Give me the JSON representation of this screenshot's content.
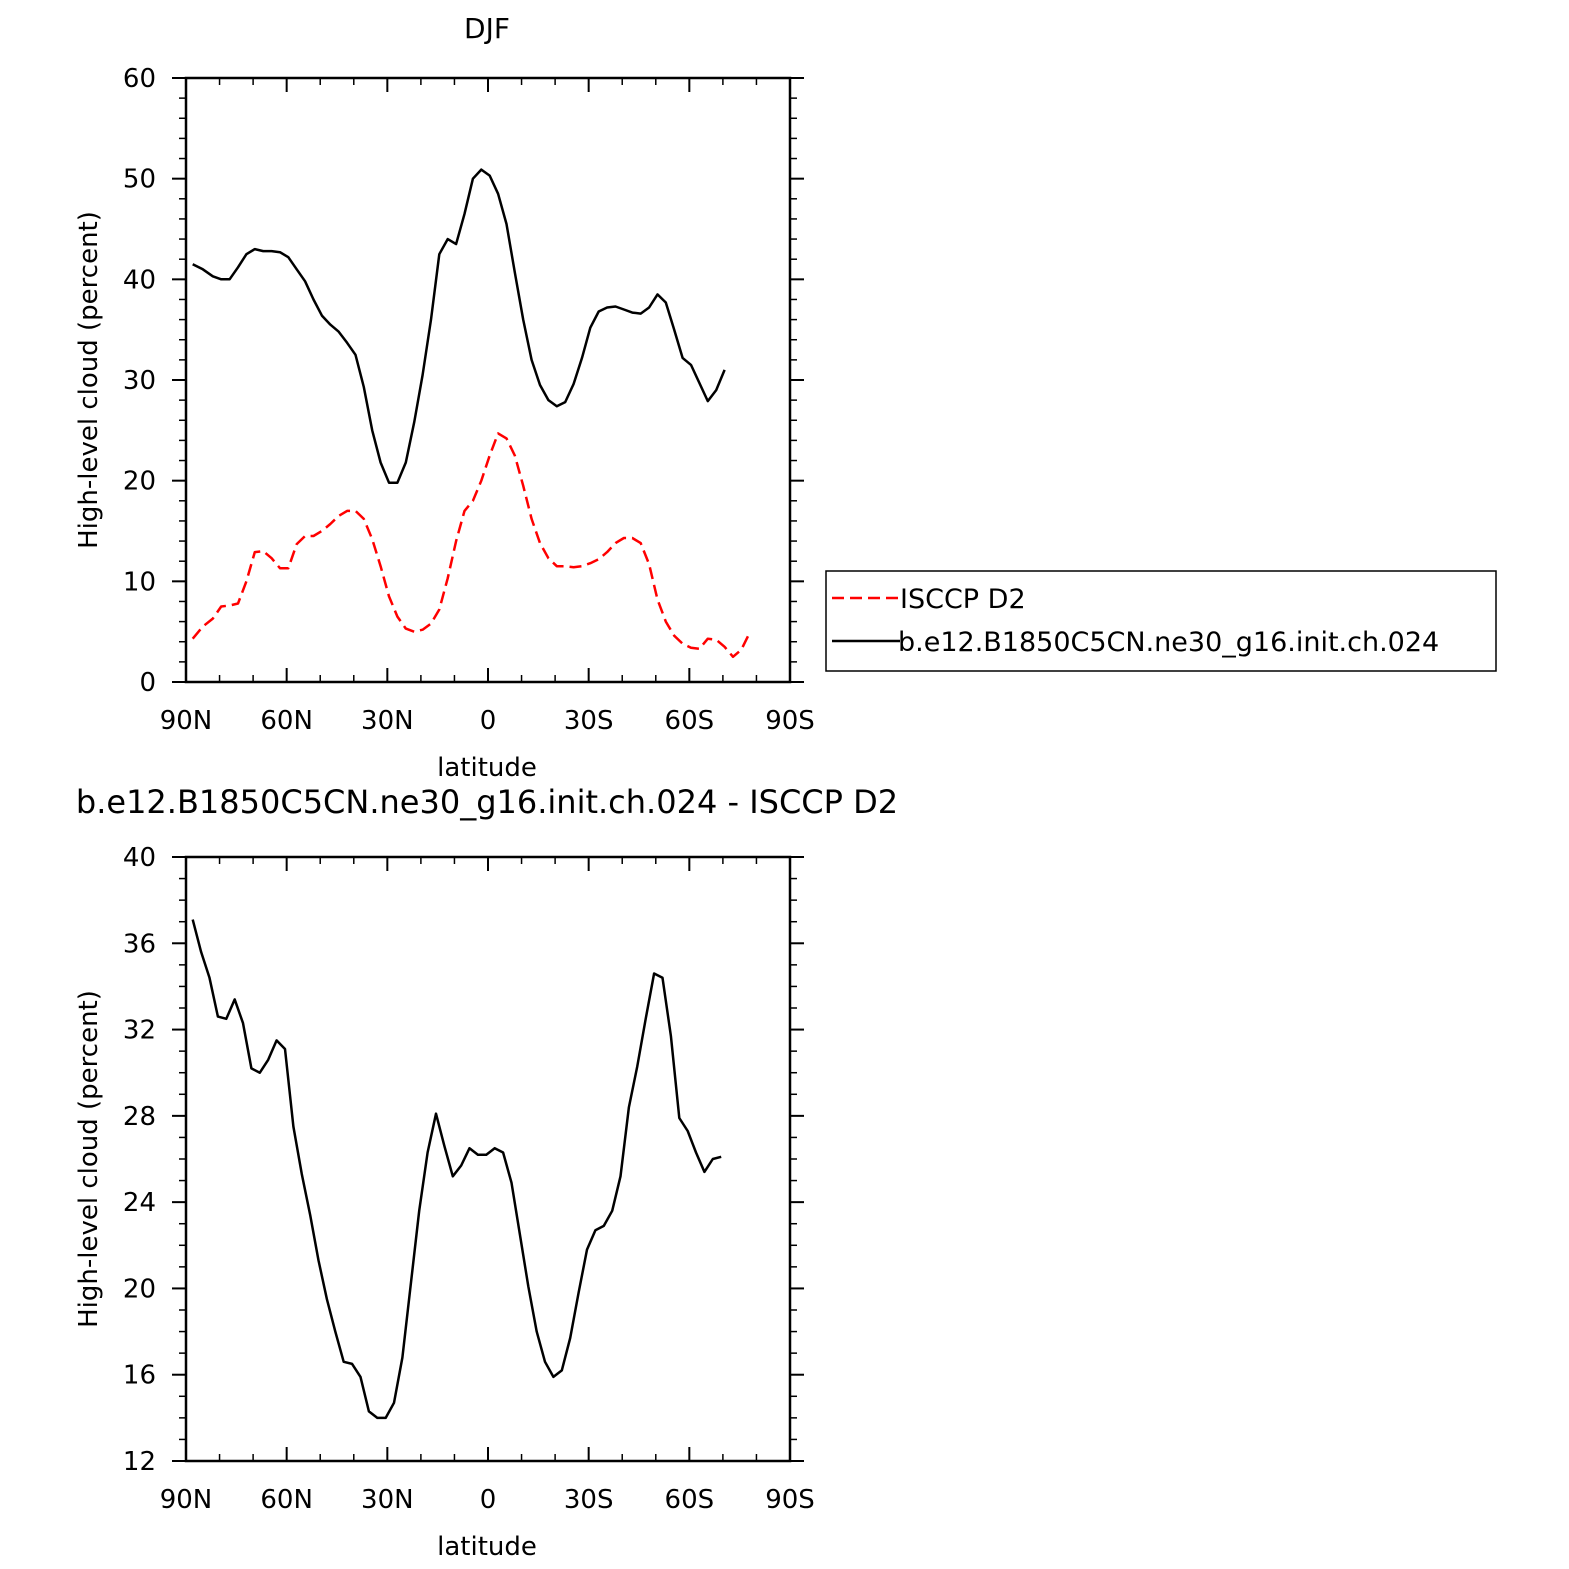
{
  "chart_data": [
    {
      "type": "line",
      "title": "DJF",
      "xlabel": "latitude",
      "ylabel": "High-level cloud (percent)",
      "xlim": [
        -90,
        90
      ],
      "ylim": [
        0,
        60
      ],
      "x_ticks": [
        {
          "value": -90,
          "label": "90N"
        },
        {
          "value": -60,
          "label": "60N"
        },
        {
          "value": -30,
          "label": "30N"
        },
        {
          "value": 0,
          "label": "0"
        },
        {
          "value": 30,
          "label": "30S"
        },
        {
          "value": 60,
          "label": "60S"
        },
        {
          "value": 90,
          "label": "90S"
        }
      ],
      "y_ticks": [
        {
          "value": 0,
          "label": "0"
        },
        {
          "value": 10,
          "label": "10"
        },
        {
          "value": 20,
          "label": "20"
        },
        {
          "value": 30,
          "label": "30"
        },
        {
          "value": 40,
          "label": "40"
        },
        {
          "value": 50,
          "label": "50"
        },
        {
          "value": 60,
          "label": "60"
        }
      ],
      "grid": false,
      "legend": {
        "placement": "right",
        "entries": [
          {
            "name": "ISCCP D2",
            "color": "#ff0000",
            "dash": true
          },
          {
            "name": "b.e12.B1850C5CN.ne30_g16.init.ch.024",
            "color": "#000000",
            "dash": false
          }
        ]
      },
      "series": [
        {
          "name": "ISCCP D2",
          "color": "#ff0000",
          "dash": true,
          "points": [
            [
              -88,
              4.3
            ],
            [
              -85,
              5.5
            ],
            [
              -82,
              6.3
            ],
            [
              -79.5,
              7.5
            ],
            [
              -77,
              7.6
            ],
            [
              -74.5,
              7.8
            ],
            [
              -72,
              10
            ],
            [
              -69.5,
              12.9
            ],
            [
              -67,
              13
            ],
            [
              -64.5,
              12.3
            ],
            [
              -62,
              11.3
            ],
            [
              -59.5,
              11.3
            ],
            [
              -57,
              13.7
            ],
            [
              -54.5,
              14.5
            ],
            [
              -52,
              14.5
            ],
            [
              -49.5,
              15
            ],
            [
              -47,
              15.7
            ],
            [
              -44.5,
              16.5
            ],
            [
              -42,
              17
            ],
            [
              -39.5,
              17
            ],
            [
              -37,
              16.2
            ],
            [
              -34.5,
              14.2
            ],
            [
              -32,
              11.5
            ],
            [
              -29.5,
              8.5
            ],
            [
              -27,
              6.5
            ],
            [
              -24.5,
              5.3
            ],
            [
              -22,
              5
            ],
            [
              -19.5,
              5.2
            ],
            [
              -17,
              5.8
            ],
            [
              -14.5,
              7.2
            ],
            [
              -12,
              10.3
            ],
            [
              -9.5,
              14
            ],
            [
              -7,
              17
            ],
            [
              -4.5,
              18
            ],
            [
              -2,
              20
            ],
            [
              0.5,
              22.5
            ],
            [
              3,
              24.7
            ],
            [
              5.5,
              24.2
            ],
            [
              8,
              22.5
            ],
            [
              10.5,
              19.5
            ],
            [
              13,
              16.2
            ],
            [
              15.5,
              13.8
            ],
            [
              18,
              12.3
            ],
            [
              20.5,
              11.5
            ],
            [
              23,
              11.5
            ],
            [
              25.5,
              11.4
            ],
            [
              28,
              11.5
            ],
            [
              30.5,
              11.8
            ],
            [
              33,
              12.2
            ],
            [
              35.5,
              12.9
            ],
            [
              38,
              13.8
            ],
            [
              40.5,
              14.3
            ],
            [
              43,
              14.3
            ],
            [
              45.5,
              13.8
            ],
            [
              48,
              11.7
            ],
            [
              50.5,
              8.2
            ],
            [
              53,
              6
            ],
            [
              55.5,
              4.6
            ],
            [
              58,
              3.8
            ],
            [
              60.5,
              3.4
            ],
            [
              63,
              3.3
            ],
            [
              65.5,
              4.3
            ],
            [
              68,
              4.2
            ],
            [
              70.5,
              3.5
            ],
            [
              73,
              2.5
            ],
            [
              75.5,
              3.2
            ],
            [
              78,
              4.9
            ]
          ]
        },
        {
          "name": "b.e12.B1850C5CN.ne30_g16.init.ch.024",
          "color": "#000000",
          "dash": false,
          "points": [
            [
              -88,
              41.5
            ],
            [
              -85,
              41
            ],
            [
              -82,
              40.3
            ],
            [
              -79.5,
              40
            ],
            [
              -77,
              40
            ],
            [
              -74.5,
              41.2
            ],
            [
              -72,
              42.5
            ],
            [
              -69.5,
              43
            ],
            [
              -67,
              42.8
            ],
            [
              -64.5,
              42.8
            ],
            [
              -62,
              42.7
            ],
            [
              -59.5,
              42.2
            ],
            [
              -57,
              41
            ],
            [
              -54.5,
              39.8
            ],
            [
              -52,
              38
            ],
            [
              -49.5,
              36.4
            ],
            [
              -47,
              35.5
            ],
            [
              -44.5,
              34.8
            ],
            [
              -42,
              33.7
            ],
            [
              -39.5,
              32.5
            ],
            [
              -37,
              29.3
            ],
            [
              -34.5,
              25
            ],
            [
              -32,
              21.8
            ],
            [
              -29.5,
              19.8
            ],
            [
              -27,
              19.8
            ],
            [
              -24.5,
              21.8
            ],
            [
              -22,
              25.8
            ],
            [
              -19.5,
              30.5
            ],
            [
              -17,
              36
            ],
            [
              -14.5,
              42.5
            ],
            [
              -12,
              44
            ],
            [
              -9.5,
              43.5
            ],
            [
              -7,
              46.5
            ],
            [
              -4.5,
              50
            ],
            [
              -2,
              50.9
            ],
            [
              0.5,
              50.3
            ],
            [
              3,
              48.5
            ],
            [
              5.5,
              45.5
            ],
            [
              8,
              40.7
            ],
            [
              10.5,
              36
            ],
            [
              13,
              32
            ],
            [
              15.5,
              29.5
            ],
            [
              18,
              28
            ],
            [
              20.5,
              27.4
            ],
            [
              23,
              27.8
            ],
            [
              25.5,
              29.6
            ],
            [
              28,
              32.2
            ],
            [
              30.5,
              35.2
            ],
            [
              33,
              36.8
            ],
            [
              35.5,
              37.2
            ],
            [
              38,
              37.3
            ],
            [
              40.5,
              37
            ],
            [
              43,
              36.7
            ],
            [
              45.5,
              36.6
            ],
            [
              48,
              37.2
            ],
            [
              50.5,
              38.5
            ],
            [
              53,
              37.7
            ],
            [
              55.5,
              35
            ],
            [
              58,
              32.2
            ],
            [
              60.5,
              31.5
            ],
            [
              63,
              29.7
            ],
            [
              65.5,
              27.9
            ],
            [
              68,
              29
            ],
            [
              70.5,
              31
            ]
          ]
        }
      ]
    },
    {
      "type": "line",
      "title": "b.e12.B1850C5CN.ne30_g16.init.ch.024 - ISCCP D2",
      "xlabel": "latitude",
      "ylabel": "High-level cloud (percent)",
      "xlim": [
        -90,
        90
      ],
      "ylim": [
        12,
        40
      ],
      "x_ticks": [
        {
          "value": -90,
          "label": "90N"
        },
        {
          "value": -60,
          "label": "60N"
        },
        {
          "value": -30,
          "label": "30N"
        },
        {
          "value": 0,
          "label": "0"
        },
        {
          "value": 30,
          "label": "30S"
        },
        {
          "value": 60,
          "label": "60S"
        },
        {
          "value": 90,
          "label": "90S"
        }
      ],
      "y_ticks": [
        {
          "value": 12,
          "label": "12"
        },
        {
          "value": 16,
          "label": "16"
        },
        {
          "value": 20,
          "label": "20"
        },
        {
          "value": 24,
          "label": "24"
        },
        {
          "value": 28,
          "label": "28"
        },
        {
          "value": 32,
          "label": "32"
        },
        {
          "value": 36,
          "label": "36"
        },
        {
          "value": 40,
          "label": "40"
        }
      ],
      "grid": false,
      "series": [
        {
          "color": "#000000",
          "dash": false,
          "points": [
            [
              -88,
              37.1
            ],
            [
              -85.5,
              35.6
            ],
            [
              -83,
              34.4
            ],
            [
              -80.5,
              32.6
            ],
            [
              -78,
              32.5
            ],
            [
              -75.5,
              33.4
            ],
            [
              -73,
              32.3
            ],
            [
              -70.5,
              30.2
            ],
            [
              -68,
              30
            ],
            [
              -65.5,
              30.6
            ],
            [
              -63,
              31.5
            ],
            [
              -60.5,
              31.1
            ],
            [
              -58,
              27.5
            ],
            [
              -55.5,
              25.3
            ],
            [
              -53,
              23.4
            ],
            [
              -50.5,
              21.3
            ],
            [
              -48,
              19.5
            ],
            [
              -45.5,
              18
            ],
            [
              -43,
              16.6
            ],
            [
              -40.5,
              16.5
            ],
            [
              -38,
              15.9
            ],
            [
              -35.5,
              14.3
            ],
            [
              -33,
              14.0
            ],
            [
              -30.5,
              14.0
            ],
            [
              -28,
              14.7
            ],
            [
              -25.5,
              16.8
            ],
            [
              -23,
              20.2
            ],
            [
              -20.5,
              23.6
            ],
            [
              -18,
              26.3
            ],
            [
              -15.5,
              28.1
            ],
            [
              -13,
              26.6
            ],
            [
              -10.5,
              25.2
            ],
            [
              -8,
              25.7
            ],
            [
              -5.5,
              26.5
            ],
            [
              -3,
              26.2
            ],
            [
              -0.5,
              26.2
            ],
            [
              2,
              26.5
            ],
            [
              4.5,
              26.3
            ],
            [
              7,
              24.9
            ],
            [
              9.5,
              22.5
            ],
            [
              12,
              20.1
            ],
            [
              14.5,
              18
            ],
            [
              17,
              16.6
            ],
            [
              19.5,
              15.9
            ],
            [
              22,
              16.2
            ],
            [
              24.5,
              17.7
            ],
            [
              27,
              19.8
            ],
            [
              29.5,
              21.8
            ],
            [
              32,
              22.7
            ],
            [
              34.5,
              22.9
            ],
            [
              37,
              23.6
            ],
            [
              39.5,
              25.2
            ],
            [
              42,
              28.4
            ],
            [
              44.5,
              30.3
            ],
            [
              47,
              32.5
            ],
            [
              49.5,
              34.6
            ],
            [
              52,
              34.4
            ],
            [
              54.5,
              31.7
            ],
            [
              57,
              27.9
            ],
            [
              59.5,
              27.3
            ],
            [
              62,
              26.3
            ],
            [
              64.5,
              25.4
            ],
            [
              67,
              26.0
            ],
            [
              69.5,
              26.1
            ]
          ]
        }
      ]
    }
  ]
}
